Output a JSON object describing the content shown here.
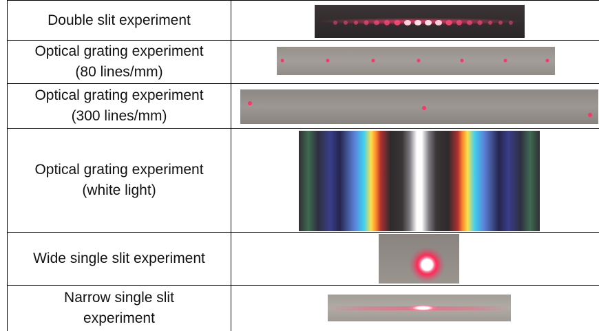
{
  "rows": [
    {
      "label_lines": [
        "Double slit experiment"
      ],
      "image": "double-slit-fringe-pattern"
    },
    {
      "label_lines": [
        "Optical grating experiment",
        "(80 lines/mm)"
      ],
      "image": "grating-80-dots"
    },
    {
      "label_lines": [
        "Optical grating experiment",
        "(300 lines/mm)"
      ],
      "image": "grating-300-dots"
    },
    {
      "label_lines": [
        "Optical grating experiment",
        "(white light)"
      ],
      "image": "white-light-spectrum"
    },
    {
      "label_lines": [
        "Wide single slit experiment"
      ],
      "image": "wide-single-slit-spot"
    },
    {
      "label_lines": [
        "Narrow single slit",
        "experiment"
      ],
      "image": "narrow-single-slit-fringe"
    }
  ],
  "colors": {
    "laser": "#ff2a55",
    "border": "#000000",
    "plate": "#8a8580"
  }
}
